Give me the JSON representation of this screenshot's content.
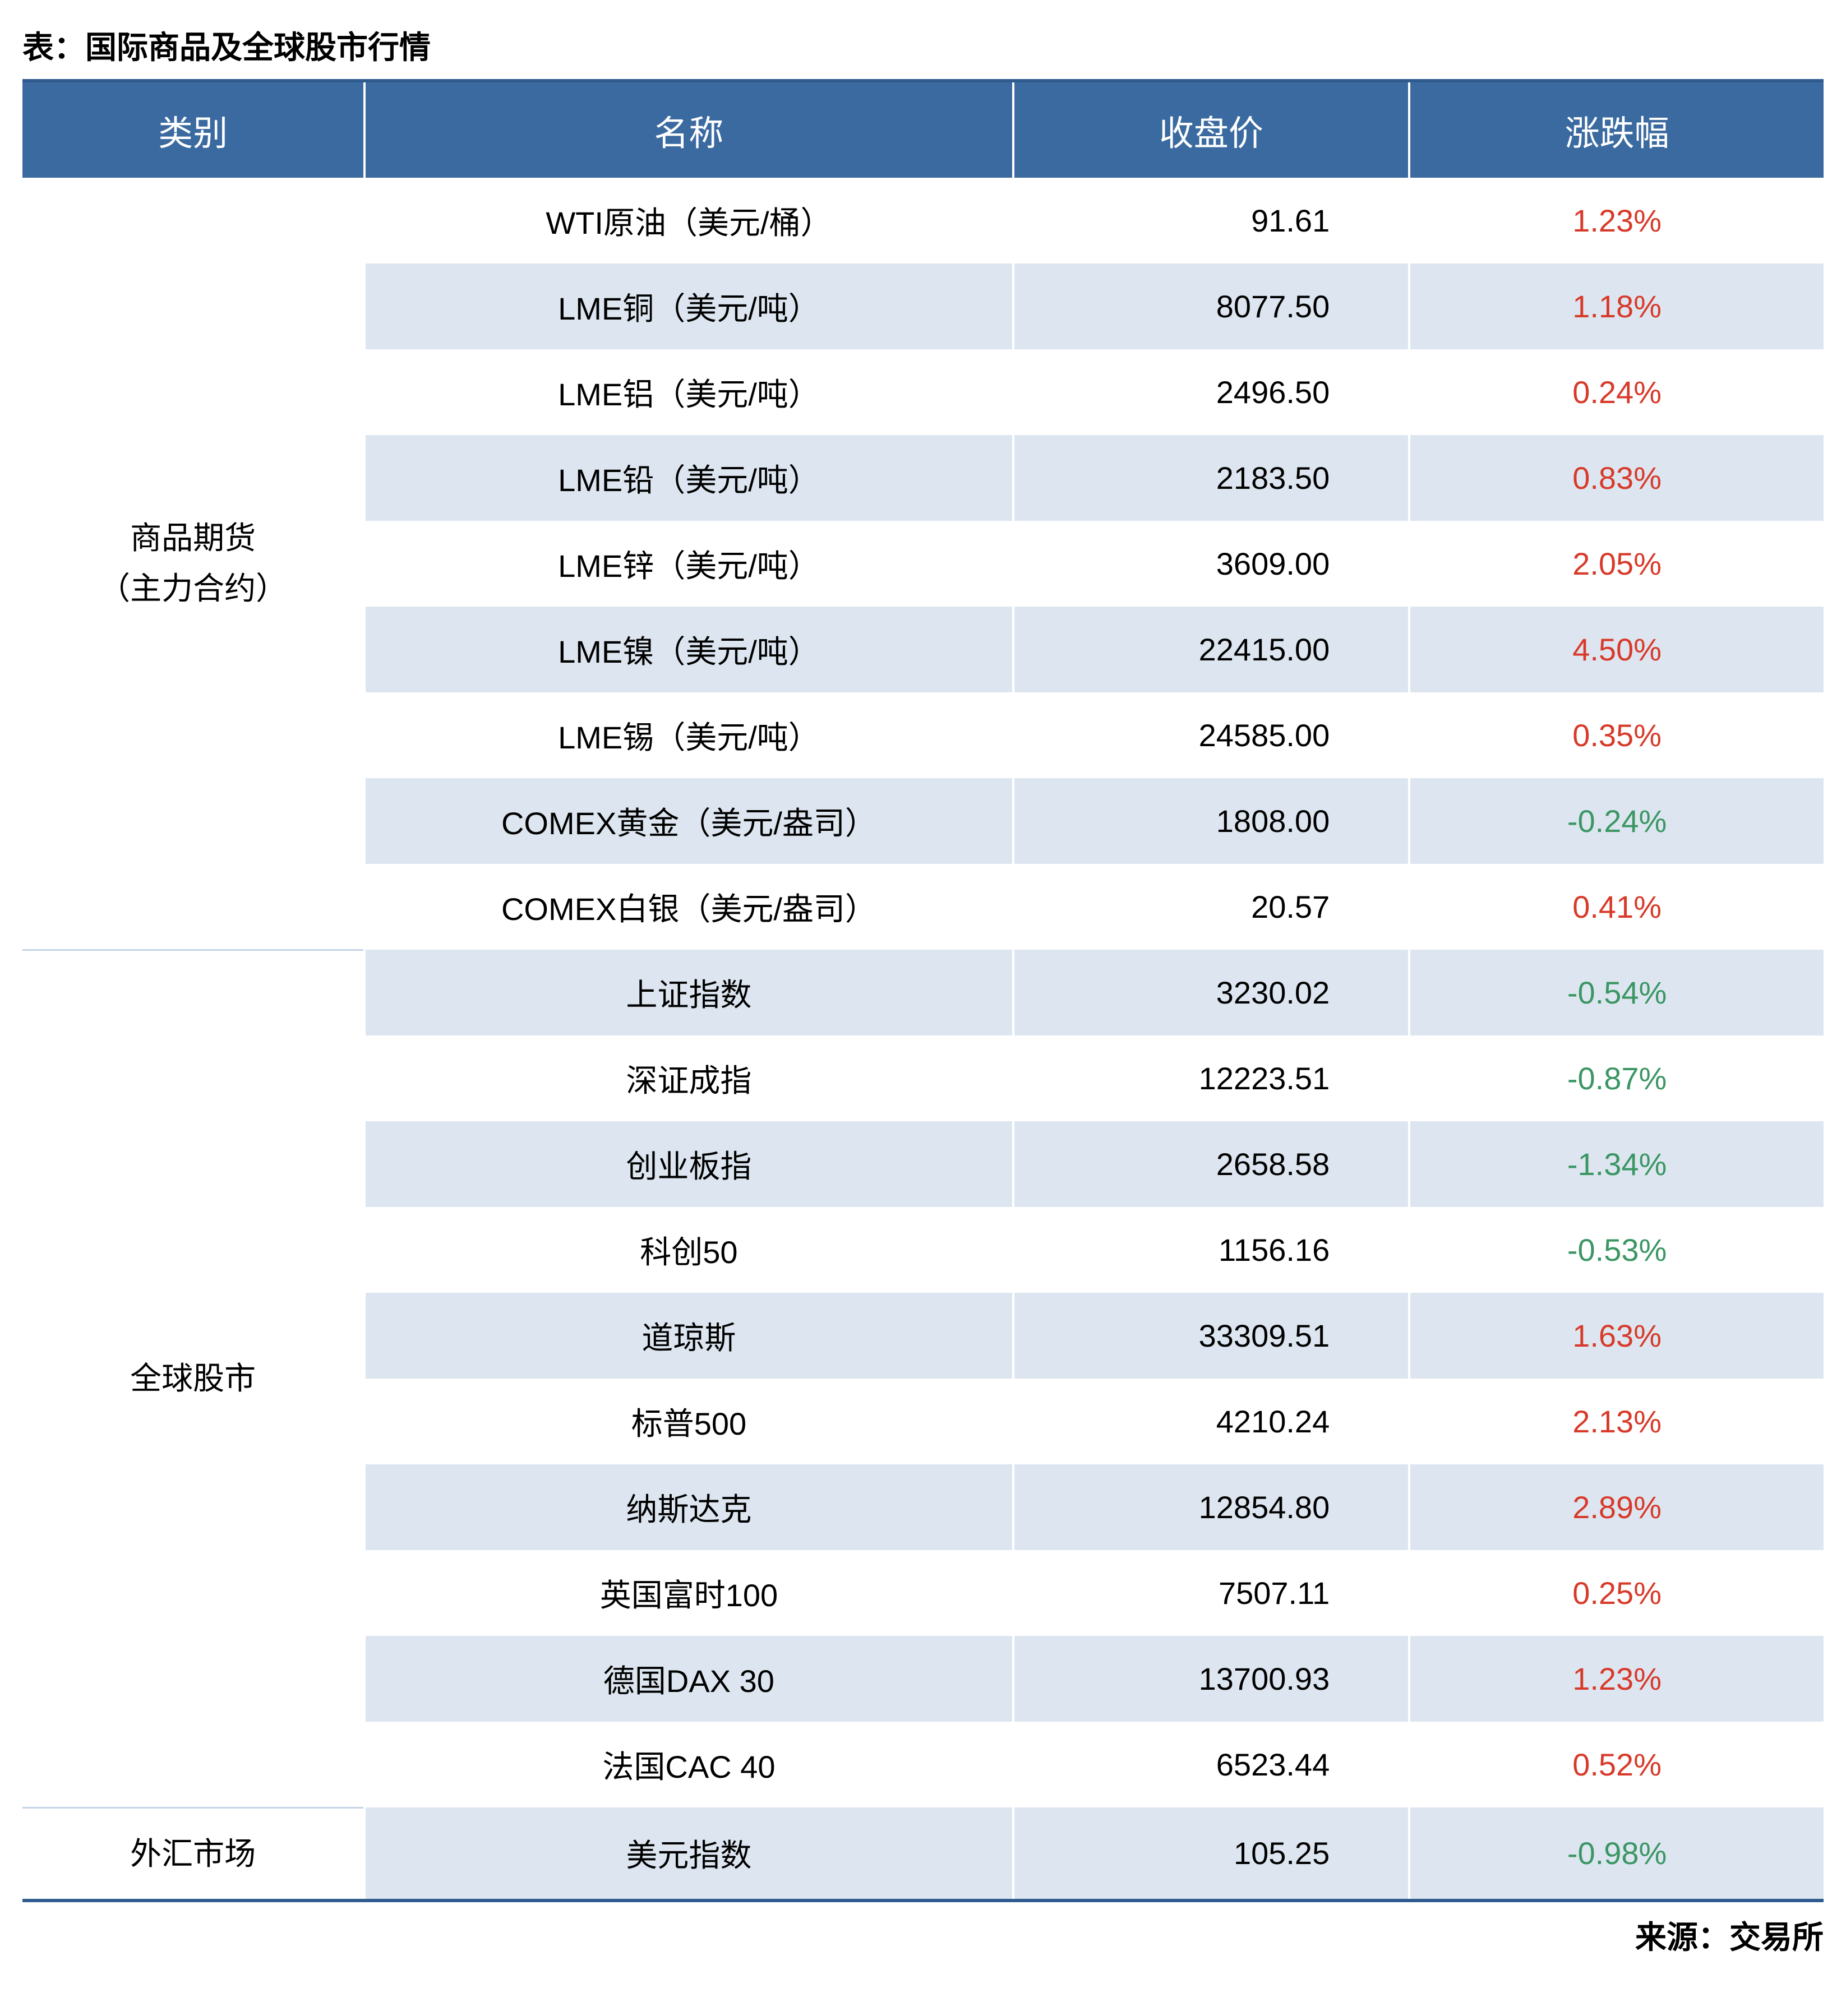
{
  "title": "表：国际商品及全球股市行情",
  "source": "来源：交易所",
  "columns": [
    "类别",
    "名称",
    "收盘价",
    "涨跌幅"
  ],
  "colors": {
    "header_bg": "#3a6aa0",
    "header_fg": "#ffffff",
    "row_odd_bg": "#ffffff",
    "row_even_bg": "#dde6f0",
    "border_accent": "#2f5b8f",
    "up": "#d83a2a",
    "down": "#3b9664",
    "text": "#000000"
  },
  "typography": {
    "title_fontsize_pt": 42,
    "header_fontsize_pt": 46,
    "cell_fontsize_pt": 42,
    "title_weight": "bold",
    "header_weight": "normal"
  },
  "layout": {
    "col_widths_pct": [
      19,
      36,
      22,
      23
    ],
    "price_align": "right",
    "name_align": "center",
    "change_align": "center"
  },
  "groups": [
    {
      "category": "商品期货\n（主力合约）",
      "rows": [
        {
          "name": "WTI原油（美元/桶）",
          "price": "91.61",
          "change": "1.23%",
          "dir": "up"
        },
        {
          "name": "LME铜（美元/吨）",
          "price": "8077.50",
          "change": "1.18%",
          "dir": "up"
        },
        {
          "name": "LME铝（美元/吨）",
          "price": "2496.50",
          "change": "0.24%",
          "dir": "up"
        },
        {
          "name": "LME铅（美元/吨）",
          "price": "2183.50",
          "change": "0.83%",
          "dir": "up"
        },
        {
          "name": "LME锌（美元/吨）",
          "price": "3609.00",
          "change": "2.05%",
          "dir": "up"
        },
        {
          "name": "LME镍（美元/吨）",
          "price": "22415.00",
          "change": "4.50%",
          "dir": "up"
        },
        {
          "name": "LME锡（美元/吨）",
          "price": "24585.00",
          "change": "0.35%",
          "dir": "up"
        },
        {
          "name": "COMEX黄金（美元/盎司）",
          "price": "1808.00",
          "change": "-0.24%",
          "dir": "down"
        },
        {
          "name": "COMEX白银（美元/盎司）",
          "price": "20.57",
          "change": "0.41%",
          "dir": "up"
        }
      ]
    },
    {
      "category": "全球股市",
      "rows": [
        {
          "name": "上证指数",
          "price": "3230.02",
          "change": "-0.54%",
          "dir": "down"
        },
        {
          "name": "深证成指",
          "price": "12223.51",
          "change": "-0.87%",
          "dir": "down"
        },
        {
          "name": "创业板指",
          "price": "2658.58",
          "change": "-1.34%",
          "dir": "down"
        },
        {
          "name": "科创50",
          "price": "1156.16",
          "change": "-0.53%",
          "dir": "down"
        },
        {
          "name": "道琼斯",
          "price": "33309.51",
          "change": "1.63%",
          "dir": "up"
        },
        {
          "name": "标普500",
          "price": "4210.24",
          "change": "2.13%",
          "dir": "up"
        },
        {
          "name": "纳斯达克",
          "price": "12854.80",
          "change": "2.89%",
          "dir": "up"
        },
        {
          "name": "英国富时100",
          "price": "7507.11",
          "change": "0.25%",
          "dir": "up"
        },
        {
          "name": "德国DAX 30",
          "price": "13700.93",
          "change": "1.23%",
          "dir": "up"
        },
        {
          "name": "法国CAC 40",
          "price": "6523.44",
          "change": "0.52%",
          "dir": "up"
        }
      ]
    },
    {
      "category": "外汇市场",
      "rows": [
        {
          "name": "美元指数",
          "price": "105.25",
          "change": "-0.98%",
          "dir": "down"
        }
      ]
    }
  ]
}
